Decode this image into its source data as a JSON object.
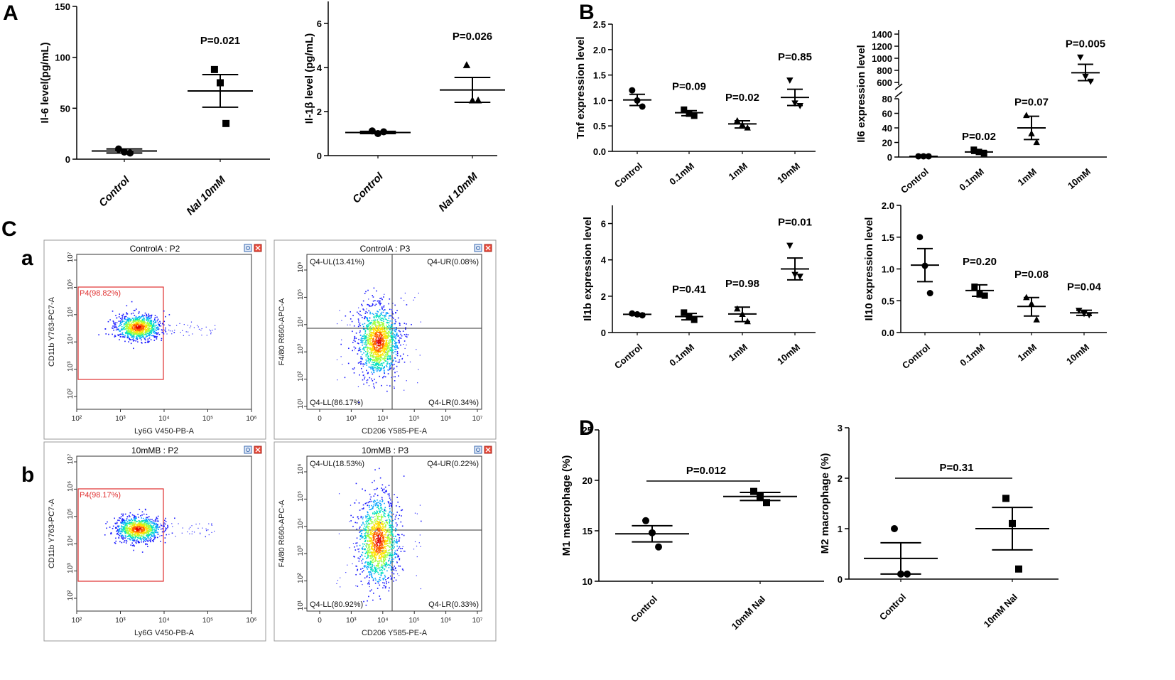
{
  "figure": {
    "panel_labels": [
      "A",
      "B",
      "C",
      "D"
    ],
    "sub_labels": [
      "a",
      "b"
    ]
  },
  "chart_data": [
    {
      "id": "A1",
      "type": "scatter",
      "panel": "A",
      "ylabel": "Il-6 level(pg/mL)",
      "ylim": [
        0,
        150
      ],
      "yticks": [
        "0",
        "50",
        "100",
        "150"
      ],
      "ytick_values": [
        0,
        50,
        100,
        150
      ],
      "categories": [
        "Control",
        "NaI 10mM"
      ],
      "marker": [
        "circle",
        "square"
      ],
      "points": [
        [
          10,
          7,
          6
        ],
        [
          88,
          75,
          35
        ]
      ],
      "mean": [
        8,
        67
      ],
      "sem": [
        [
          6,
          10
        ],
        [
          51,
          83
        ]
      ],
      "pvalues": [
        null,
        "P=0.021"
      ]
    },
    {
      "id": "A2",
      "type": "scatter",
      "panel": "A",
      "ylabel": "Il-1β level (pg/mL)",
      "ylim": [
        0,
        7
      ],
      "yticks": [
        "0",
        "2",
        "4",
        "6"
      ],
      "ytick_values": [
        0,
        2,
        4,
        6
      ],
      "categories": [
        "Control",
        "NaI 10mM"
      ],
      "marker": [
        "circle",
        "triangle"
      ],
      "points": [
        [
          1.12,
          1.0,
          1.08
        ],
        [
          4.1,
          2.5,
          2.5
        ]
      ],
      "mean": [
        1.05,
        2.98
      ],
      "sem": [
        [
          1.0,
          1.1
        ],
        [
          2.42,
          3.55
        ]
      ],
      "pvalues": [
        null,
        "P=0.026"
      ]
    },
    {
      "id": "B1",
      "type": "scatter",
      "panel": "B",
      "ylabel": "Tnf expression level",
      "ylim": [
        0,
        2.5
      ],
      "yticks": [
        "0.0",
        "0.5",
        "1.0",
        "1.5",
        "2.0",
        "2.5"
      ],
      "ytick_values": [
        0,
        0.5,
        1.0,
        1.5,
        2.0,
        2.5
      ],
      "categories": [
        "Control",
        "0.1mM",
        "1mM",
        "10mM"
      ],
      "marker": [
        "circle",
        "square",
        "triangle",
        "triangle-down"
      ],
      "points": [
        [
          1.2,
          1.0,
          0.88
        ],
        [
          0.82,
          0.74,
          0.7
        ],
        [
          0.6,
          0.52,
          0.46
        ],
        [
          1.4,
          0.95,
          0.9
        ]
      ],
      "mean": [
        1.01,
        0.76,
        0.54,
        1.06
      ],
      "sem": [
        [
          0.9,
          1.12
        ],
        [
          0.7,
          0.8
        ],
        [
          0.46,
          0.6
        ],
        [
          0.9,
          1.22
        ]
      ],
      "pvalues": [
        null,
        "P=0.09",
        "P=0.02",
        "P=0.85"
      ]
    },
    {
      "id": "B2",
      "type": "scatter",
      "panel": "B",
      "broken_axis": true,
      "ylabel": "Il6 expression level",
      "yticks_lower": [
        "0",
        "20",
        "40",
        "60",
        "80"
      ],
      "ytick_values_lower": [
        0,
        20,
        40,
        60,
        80
      ],
      "yticks_upper": [
        "600",
        "800",
        "1000",
        "1200",
        "1400"
      ],
      "ytick_values_upper": [
        600,
        800,
        1000,
        1200,
        1400
      ],
      "categories": [
        "Control",
        "0.1mM",
        "1mM",
        "10mM"
      ],
      "marker": [
        "circle",
        "square",
        "triangle",
        "triangle-down"
      ],
      "points": [
        [
          1,
          1,
          1
        ],
        [
          10,
          7,
          5
        ],
        [
          57,
          32,
          20
        ],
        [
          1020,
          700,
          620
        ]
      ],
      "mean": [
        1,
        7,
        40,
        760
      ],
      "sem": [
        [
          0,
          2
        ],
        [
          5,
          9
        ],
        [
          24,
          56
        ],
        [
          630,
          900
        ]
      ],
      "pvalues": [
        null,
        "P=0.02",
        "P=0.07",
        "P=0.005"
      ]
    },
    {
      "id": "B3",
      "type": "scatter",
      "panel": "B",
      "ylabel": "Il1b expression level",
      "ylim": [
        0,
        7
      ],
      "yticks": [
        "0",
        "2",
        "4",
        "6"
      ],
      "ytick_values": [
        0,
        2,
        4,
        6
      ],
      "categories": [
        "Control",
        "0.1mM",
        "1mM",
        "10mM"
      ],
      "marker": [
        "circle",
        "square",
        "triangle",
        "triangle-down"
      ],
      "points": [
        [
          1.05,
          1.0,
          0.95
        ],
        [
          1.1,
          0.85,
          0.7
        ],
        [
          1.3,
          1.0,
          0.6
        ],
        [
          4.8,
          3.2,
          3.1
        ]
      ],
      "mean": [
        1.0,
        0.88,
        1.02,
        3.5
      ],
      "sem": [
        [
          0.95,
          1.05
        ],
        [
          0.7,
          1.05
        ],
        [
          0.6,
          1.4
        ],
        [
          2.9,
          4.1
        ]
      ],
      "pvalues": [
        null,
        "P=0.41",
        "P=0.98",
        "P=0.01"
      ]
    },
    {
      "id": "B4",
      "type": "scatter",
      "panel": "B",
      "ylabel": "Il10 expression level",
      "ylim": [
        0,
        2.0
      ],
      "yticks": [
        "0.0",
        "0.5",
        "1.0",
        "1.5",
        "2.0"
      ],
      "ytick_values": [
        0,
        0.5,
        1.0,
        1.5,
        2.0
      ],
      "categories": [
        "Control",
        "0.1mM",
        "1mM",
        "10mM"
      ],
      "marker": [
        "circle",
        "square",
        "triangle",
        "triangle-down"
      ],
      "points": [
        [
          1.5,
          1.05,
          0.62
        ],
        [
          0.72,
          0.6,
          0.58
        ],
        [
          0.55,
          0.45,
          0.2
        ],
        [
          0.35,
          0.3,
          0.28
        ]
      ],
      "mean": [
        1.06,
        0.66,
        0.41,
        0.31
      ],
      "sem": [
        [
          0.8,
          1.32
        ],
        [
          0.57,
          0.75
        ],
        [
          0.26,
          0.55
        ],
        [
          0.27,
          0.35
        ]
      ],
      "pvalues": [
        null,
        "P=0.20",
        "P=0.08",
        "P=0.04"
      ]
    },
    {
      "id": "D1",
      "type": "scatter",
      "panel": "D",
      "ylabel": "M1 macrophage (%)",
      "ylim": [
        10,
        25
      ],
      "yticks": [
        "10",
        "15",
        "20",
        "25"
      ],
      "ytick_values": [
        10,
        15,
        20,
        25
      ],
      "categories": [
        "Control",
        "10mM NaI"
      ],
      "marker": [
        "circle",
        "square"
      ],
      "points": [
        [
          16.0,
          14.8,
          13.4
        ],
        [
          18.9,
          18.4,
          17.8
        ]
      ],
      "mean": [
        14.7,
        18.4
      ],
      "sem": [
        [
          13.9,
          15.5
        ],
        [
          18.0,
          18.8
        ]
      ],
      "bracket": "P=0.012"
    },
    {
      "id": "D2",
      "type": "scatter",
      "panel": "D",
      "ylabel": "M2 macrophage (%)",
      "ylim": [
        0,
        3
      ],
      "yticks": [
        "0",
        "1",
        "2",
        "3"
      ],
      "ytick_values": [
        0,
        1,
        2,
        3
      ],
      "categories": [
        "Control",
        "10mM NaI"
      ],
      "marker": [
        "circle",
        "square"
      ],
      "points": [
        [
          1.0,
          0.1,
          0.1
        ],
        [
          1.6,
          1.1,
          0.2
        ]
      ],
      "mean": [
        0.41,
        1.0
      ],
      "sem": [
        [
          0.1,
          0.72
        ],
        [
          0.58,
          1.42
        ]
      ],
      "bracket": "P=0.31"
    }
  ],
  "flow": {
    "sample_a": {
      "p2_title": "ControlA : P2",
      "p3_title": "ControlA : P3",
      "gate_label": "P4(98.82%)",
      "quad_ul": "Q4-UL(13.41%)",
      "quad_ur": "Q4-UR(0.08%)",
      "quad_ll": "Q4-LL(86.17%)",
      "quad_lr": "Q4-LR(0.34%)"
    },
    "sample_b": {
      "p2_title": "10mMB : P2",
      "p3_title": "10mMB : P3",
      "gate_label": "P4(98.17%)",
      "quad_ul": "Q4-UL(18.53%)",
      "quad_ur": "Q4-UR(0.22%)",
      "quad_ll": "Q4-LL(80.92%)",
      "quad_lr": "Q4-LR(0.33%)"
    },
    "p2_xlabel": "Ly6G V450-PB-A",
    "p2_ylabel": "CD11b Y763-PC7-A",
    "p3_xlabel": "CD206 Y585-PE-A",
    "p3_ylabel": "F4/80 R660-APC-A",
    "p2_xticks": [
      "10²",
      "10³",
      "10⁴",
      "10⁵",
      "10⁶"
    ],
    "p2_yticks": [
      "10²",
      "10³",
      "10⁴",
      "10⁵",
      "10⁶",
      "10⁷"
    ],
    "p3_xticks": [
      "0",
      "10³",
      "10⁴",
      "10⁵",
      "10⁶",
      "10⁷"
    ],
    "p3_yticks": [
      "10¹",
      "10²",
      "10³",
      "10⁴",
      "10⁵",
      "10⁶"
    ]
  }
}
